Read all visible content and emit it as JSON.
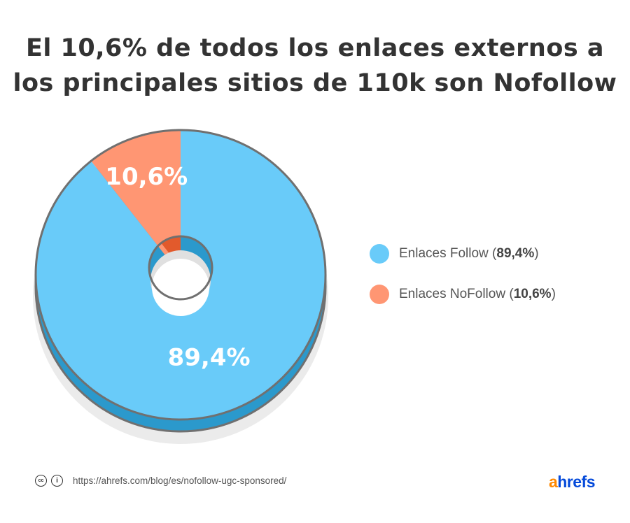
{
  "title_line1": "El 10,6% de todos los enlaces externos a",
  "title_line2": "los principales sitios de 110k son Nofollow",
  "chart_data": {
    "type": "pie",
    "title": "El 10,6% de todos los enlaces externos a los principales sitios de 110k son Nofollow",
    "slices": [
      {
        "name": "Enlaces Follow",
        "value": 89.4,
        "label": "89,4%",
        "legend_name": "Enlaces Follow",
        "legend_value": "89,4%",
        "color": "#69CBF9",
        "side_color": "#2B99CC"
      },
      {
        "name": "Enlaces NoFollow",
        "value": 10.6,
        "label": "10,6%",
        "legend_name": "Enlaces NoFollow",
        "legend_value": "10,6%",
        "color": "#FF9673",
        "side_color": "#E25A2C"
      }
    ],
    "legend_position": "right"
  },
  "footer": {
    "cc_icon": "creative-commons-icon",
    "by_icon": "attribution-icon",
    "url": "https://ahrefs.com/blog/es/nofollow-ugc-sponsored/"
  },
  "logo": {
    "a": "a",
    "rest": "hrefs",
    "a_color": "#FF8800",
    "rest_color": "#054ADA"
  }
}
